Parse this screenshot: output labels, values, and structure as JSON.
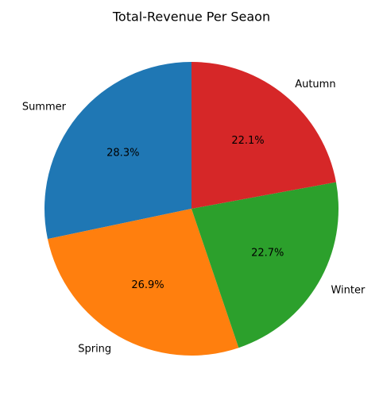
{
  "chart_data": {
    "type": "pie",
    "title": "Total-Revenue Per Seaon",
    "categories": [
      "Summer",
      "Spring",
      "Winter",
      "Autumn"
    ],
    "values": [
      28.3,
      26.9,
      22.7,
      22.1
    ],
    "percent_labels": [
      "28.3%",
      "26.9%",
      "22.7%",
      "22.1%"
    ],
    "colors": [
      "#1f77b4",
      "#ff7f0e",
      "#2ca02c",
      "#d62728"
    ],
    "start_angle_deg": 90,
    "direction": "counterclockwise",
    "legend": "none"
  }
}
